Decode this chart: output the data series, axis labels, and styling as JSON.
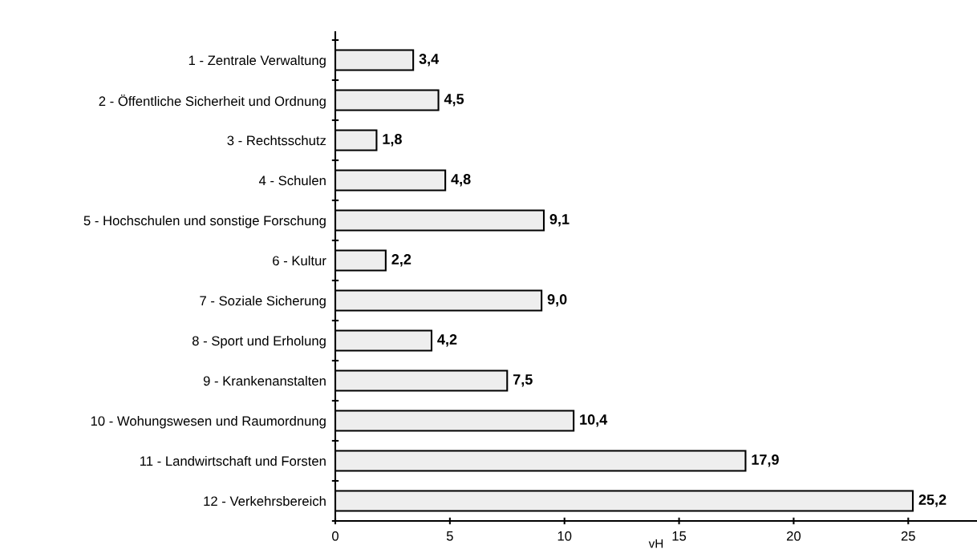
{
  "chart_data": {
    "type": "bar",
    "orientation": "horizontal",
    "xlabel": "vH",
    "categories": [
      "1 - Zentrale Verwaltung",
      "2 - Öffentliche Sicherheit und Ordnung",
      "3 - Rechtsschutz",
      "4 - Schulen",
      "5 - Hochschulen und sonstige Forschung",
      "6 - Kultur",
      "7 - Soziale Sicherung",
      "8 - Sport und Erholung",
      "9 - Krankenanstalten",
      "10 - Wohungswesen und Raumordnung",
      "11 - Landwirtschaft und Forsten",
      "12 - Verkehrsbereich"
    ],
    "values": [
      3.4,
      4.5,
      1.8,
      4.8,
      9.1,
      2.2,
      9.0,
      4.2,
      7.5,
      10.4,
      17.9,
      25.2
    ],
    "value_labels": [
      "3,4",
      "4,5",
      "1,8",
      "4,8",
      "9,1",
      "2,2",
      "9,0",
      "4,2",
      "7,5",
      "10,4",
      "17,9",
      "25,2"
    ],
    "color": "#eeeeee",
    "xlim": [
      0,
      28
    ],
    "xticks": [
      0,
      5,
      10,
      15,
      20,
      25
    ],
    "grid": false,
    "legend": false
  }
}
